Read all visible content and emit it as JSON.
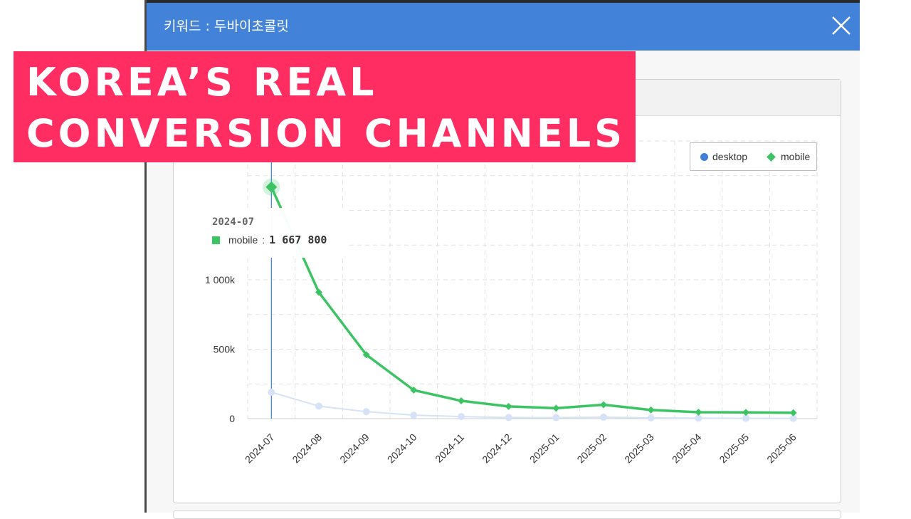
{
  "modal": {
    "title": "키워드 : 두바이초콜릿"
  },
  "banner": {
    "line1": "KOREA’S REAL",
    "line2": "CONVERSION CHANNELS"
  },
  "colors": {
    "header": "#4283d9",
    "banner": "#ff2d62",
    "desktop": "#3f7fd6",
    "mobile": "#3cc464"
  },
  "tooltip": {
    "date": "2024-07",
    "series": "mobile",
    "separator": ":",
    "value": "1 667 800"
  },
  "chart_data": {
    "type": "line",
    "categories": [
      "2024-07",
      "2024-08",
      "2024-09",
      "2024-10",
      "2024-11",
      "2024-12",
      "2025-01",
      "2025-02",
      "2025-03",
      "2025-04",
      "2025-05",
      "2025-06"
    ],
    "series": [
      {
        "name": "desktop",
        "values": [
          190000,
          90000,
          50000,
          25000,
          15000,
          8000,
          7000,
          10000,
          5000,
          3000,
          2000,
          2000
        ]
      },
      {
        "name": "mobile",
        "values": [
          1667800,
          910000,
          460000,
          205000,
          128000,
          88000,
          75000,
          100000,
          62000,
          46000,
          45000,
          42000
        ]
      }
    ],
    "yticks": [
      {
        "value": 0,
        "label": "0"
      },
      {
        "value": 500000,
        "label": "500k"
      },
      {
        "value": 1000000,
        "label": "1 000k"
      }
    ],
    "ylim": [
      0,
      2000000
    ],
    "highlight_index": 0,
    "highlight_series": "mobile",
    "grid": true,
    "legend": "top-right"
  }
}
